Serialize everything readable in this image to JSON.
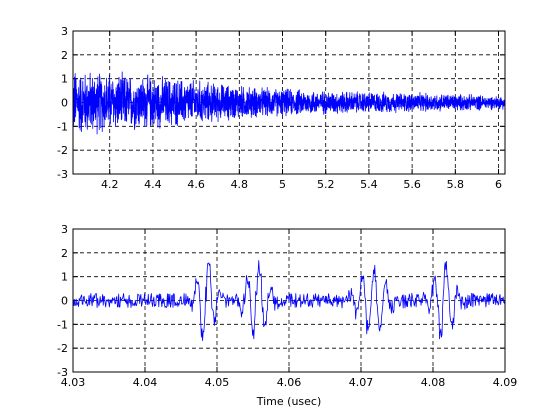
{
  "chart_data": [
    {
      "type": "line",
      "title": "",
      "xlabel": "",
      "ylabel": "",
      "xlim": [
        4.03,
        6.03
      ],
      "ylim": [
        -3,
        3
      ],
      "xticks": [
        4.2,
        4.4,
        4.6,
        4.8,
        5,
        5.2,
        5.4,
        5.6,
        5.8,
        6
      ],
      "xtick_labels": [
        "4.2",
        "4.4",
        "4.6",
        "4.8",
        "5",
        "5.2",
        "5.4",
        "5.6",
        "5.8",
        "6"
      ],
      "yticks": [
        -3,
        -2,
        -1,
        0,
        1,
        2,
        3
      ],
      "ytick_labels": [
        "-3",
        "-2",
        "-1",
        "0",
        "1",
        "2",
        "3"
      ],
      "grid": true,
      "series_color": "#0000ff",
      "envelope": {
        "x": [
          4.03,
          4.1,
          4.2,
          4.3,
          4.4,
          4.5,
          4.6,
          4.7,
          4.8,
          4.9,
          5.0,
          5.2,
          5.4,
          5.6,
          5.8,
          6.03
        ],
        "amplitude": [
          1.6,
          1.5,
          1.4,
          1.3,
          1.25,
          1.15,
          1.05,
          0.9,
          0.8,
          0.7,
          0.65,
          0.55,
          0.5,
          0.45,
          0.4,
          0.3
        ]
      }
    },
    {
      "type": "line",
      "title": "",
      "xlabel": "Time (usec)",
      "ylabel": "",
      "xlim": [
        4.03,
        4.09
      ],
      "ylim": [
        -3,
        3
      ],
      "xticks": [
        4.03,
        4.04,
        4.05,
        4.06,
        4.07,
        4.08,
        4.09
      ],
      "xtick_labels": [
        "4.03",
        "4.04",
        "4.05",
        "4.06",
        "4.07",
        "4.08",
        "4.09"
      ],
      "yticks": [
        -3,
        -2,
        -1,
        0,
        1,
        2,
        3
      ],
      "ytick_labels": [
        "-3",
        "-2",
        "-1",
        "0",
        "1",
        "2",
        "3"
      ],
      "grid": true,
      "series_color": "#0000ff",
      "bursts": [
        {
          "x": 4.0485,
          "amplitude": 1.7,
          "width": 0.0015
        },
        {
          "x": 4.0555,
          "amplitude": 1.6,
          "width": 0.0018
        },
        {
          "x": 4.0715,
          "amplitude": 1.5,
          "width": 0.0022
        },
        {
          "x": 4.0815,
          "amplitude": 1.5,
          "width": 0.0018
        }
      ],
      "noise_amplitude": 0.3
    }
  ]
}
